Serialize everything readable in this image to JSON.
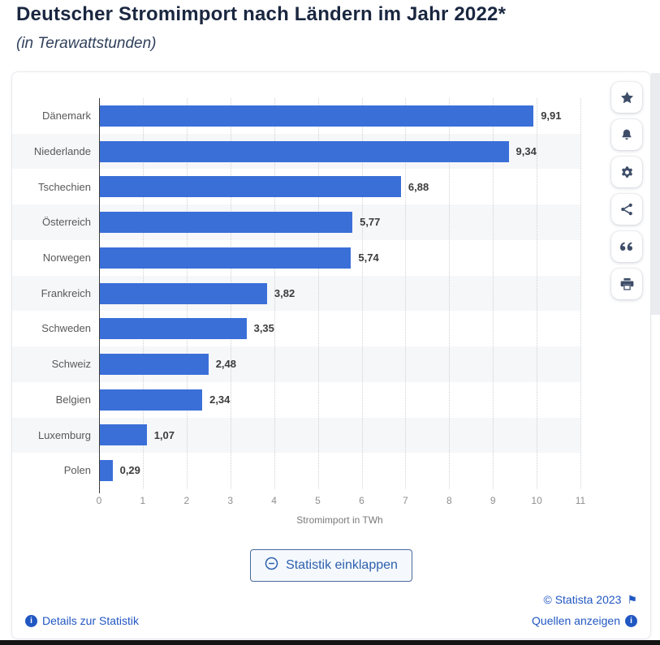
{
  "page": {
    "title": "Deutscher Stromimport nach Ländern im Jahr 2022*",
    "subtitle": "(in Terawattstunden)"
  },
  "chart_data": {
    "type": "bar",
    "orientation": "horizontal",
    "title": "Deutscher Stromimport nach Ländern im Jahr 2022*",
    "subtitle": "(in Terawattstunden)",
    "categories": [
      "Dänemark",
      "Niederlande",
      "Tschechien",
      "Österreich",
      "Norwegen",
      "Frankreich",
      "Schweden",
      "Schweiz",
      "Belgien",
      "Luxemburg",
      "Polen"
    ],
    "values": [
      9.91,
      9.34,
      6.88,
      5.77,
      5.74,
      3.82,
      3.35,
      2.48,
      2.34,
      1.07,
      0.29
    ],
    "value_labels": [
      "9,91",
      "9,34",
      "6,88",
      "5,77",
      "5,74",
      "3,82",
      "3,35",
      "2,48",
      "2,34",
      "1,07",
      "0,29"
    ],
    "xlabel": "Stromimport in TWh",
    "ylabel": "",
    "xlim": [
      0,
      11
    ],
    "xticks": [
      "0",
      "1",
      "2",
      "3",
      "4",
      "5",
      "6",
      "7",
      "8",
      "9",
      "10",
      "11"
    ],
    "grid": "vertical-dotted",
    "legend": "none",
    "bar_color": "#3a6fd8",
    "row_stripe_color": "#f6f7f9"
  },
  "toolbar": {
    "icons": [
      {
        "name": "star-icon",
        "meaning": "favorite"
      },
      {
        "name": "bell-icon",
        "meaning": "notification"
      },
      {
        "name": "gear-icon",
        "meaning": "settings"
      },
      {
        "name": "share-icon",
        "meaning": "share"
      },
      {
        "name": "quote-icon",
        "meaning": "cite"
      },
      {
        "name": "printer-icon",
        "meaning": "print"
      }
    ]
  },
  "actions": {
    "collapse_button_label": "Statistik einklappen"
  },
  "footer": {
    "details_link": "Details zur Statistik",
    "copyright": "© Statista 2023",
    "sources_link": "Quellen anzeigen",
    "info_icon_glyph": "i",
    "flag_icon_glyph": "⚑"
  },
  "colors": {
    "bar": "#3a6fd8",
    "link": "#2157c2",
    "title_text": "#1a2740",
    "stripe": "#f6f7f9",
    "icon": "#3e4d68",
    "bottom_bar": "#141414"
  }
}
